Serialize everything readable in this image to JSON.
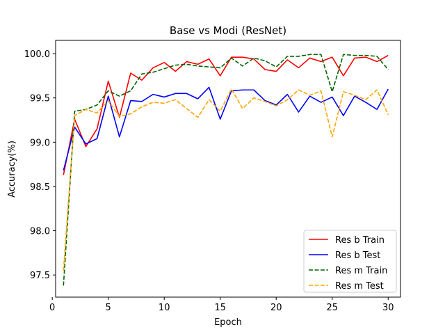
{
  "chart_data": {
    "type": "line",
    "title": "Base vs Modi (ResNet)",
    "xlabel": "Epoch",
    "ylabel": "Accuracy(%)",
    "xlim": [
      0.3,
      31.1
    ],
    "ylim": [
      97.25,
      100.15
    ],
    "xticks": [
      0,
      5,
      10,
      15,
      20,
      25,
      30
    ],
    "yticks": [
      97.5,
      98.0,
      98.5,
      99.0,
      99.5,
      100.0
    ],
    "xtick_labels": [
      "0",
      "5",
      "10",
      "15",
      "20",
      "25",
      "30"
    ],
    "ytick_labels": [
      "97.5",
      "98.0",
      "98.5",
      "99.0",
      "99.5",
      "100.0"
    ],
    "grid": false,
    "legend_position": "lower-right",
    "x": [
      1,
      2,
      3,
      4,
      5,
      6,
      7,
      8,
      9,
      10,
      11,
      12,
      13,
      14,
      15,
      16,
      17,
      18,
      19,
      20,
      21,
      22,
      23,
      24,
      25,
      26,
      27,
      28,
      29,
      30
    ],
    "series": [
      {
        "name": "Res b Train",
        "color": "#ff0000",
        "dash": "solid",
        "values": [
          98.63,
          99.26,
          98.95,
          99.15,
          99.69,
          99.28,
          99.78,
          99.7,
          99.84,
          99.9,
          99.8,
          99.91,
          99.88,
          99.94,
          99.75,
          99.96,
          99.96,
          99.94,
          99.82,
          99.8,
          99.93,
          99.84,
          99.95,
          99.91,
          99.96,
          99.75,
          99.95,
          99.96,
          99.91,
          99.98
        ]
      },
      {
        "name": "Res b Test",
        "color": "#0000ff",
        "dash": "solid",
        "values": [
          98.68,
          99.17,
          98.98,
          99.04,
          99.52,
          99.06,
          99.47,
          99.46,
          99.54,
          99.51,
          99.55,
          99.55,
          99.49,
          99.62,
          99.26,
          99.58,
          99.59,
          99.59,
          99.47,
          99.42,
          99.54,
          99.34,
          99.52,
          99.45,
          99.51,
          99.3,
          99.52,
          99.45,
          99.37,
          99.6
        ]
      },
      {
        "name": "Res m Train",
        "color": "#006400",
        "dash": "dashed",
        "values": [
          97.38,
          99.35,
          99.37,
          99.42,
          99.58,
          99.52,
          99.58,
          99.77,
          99.79,
          99.83,
          99.87,
          99.88,
          99.86,
          99.85,
          99.84,
          99.95,
          99.86,
          99.95,
          99.92,
          99.85,
          99.97,
          99.97,
          99.99,
          99.99,
          99.57,
          99.99,
          99.98,
          99.98,
          99.97,
          99.82
        ]
      },
      {
        "name": "Res m Test",
        "color": "#ffa500",
        "dash": "dashed",
        "values": [
          97.55,
          99.3,
          99.37,
          99.33,
          99.47,
          99.29,
          99.32,
          99.4,
          99.45,
          99.44,
          99.48,
          99.38,
          99.28,
          99.48,
          99.35,
          99.6,
          99.38,
          99.5,
          99.46,
          99.41,
          99.48,
          99.59,
          99.53,
          99.58,
          99.06,
          99.57,
          99.53,
          99.48,
          99.59,
          99.31
        ]
      }
    ]
  }
}
